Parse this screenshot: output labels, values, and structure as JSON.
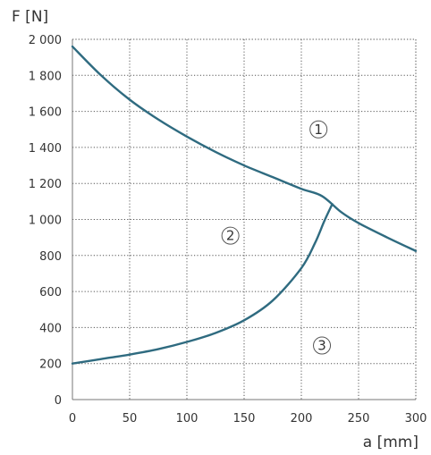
{
  "chart_data": {
    "type": "line",
    "xlabel": "a [mm]",
    "ylabel": "F [N]",
    "xlim": [
      0,
      300
    ],
    "ylim": [
      0,
      2000
    ],
    "grid": true,
    "x_ticks": [
      {
        "value": 0,
        "label": "0"
      },
      {
        "value": 50,
        "label": "50"
      },
      {
        "value": 100,
        "label": "100"
      },
      {
        "value": 150,
        "label": "150"
      },
      {
        "value": 200,
        "label": "200"
      },
      {
        "value": 250,
        "label": "250"
      },
      {
        "value": 300,
        "label": "300"
      }
    ],
    "y_ticks": [
      {
        "value": 0,
        "label": "0"
      },
      {
        "value": 200,
        "label": "200"
      },
      {
        "value": 400,
        "label": "400"
      },
      {
        "value": 600,
        "label": "600"
      },
      {
        "value": 800,
        "label": "800"
      },
      {
        "value": 1000,
        "label": "1 000"
      },
      {
        "value": 1200,
        "label": "1 200"
      },
      {
        "value": 1400,
        "label": "1 400"
      },
      {
        "value": 1600,
        "label": "1 600"
      },
      {
        "value": 1800,
        "label": "1 800"
      },
      {
        "value": 2000,
        "label": "2 000"
      }
    ],
    "series": [
      {
        "color": "#2f6b80",
        "points": [
          [
            0,
            1960
          ],
          [
            25,
            1800
          ],
          [
            50,
            1665
          ],
          [
            75,
            1555
          ],
          [
            100,
            1460
          ],
          [
            125,
            1375
          ],
          [
            150,
            1300
          ],
          [
            175,
            1235
          ],
          [
            200,
            1170
          ],
          [
            218,
            1130
          ],
          [
            235,
            1040
          ],
          [
            250,
            980
          ],
          [
            275,
            900
          ],
          [
            300,
            825
          ]
        ]
      },
      {
        "color": "#2f6b80",
        "points": [
          [
            0,
            200
          ],
          [
            25,
            225
          ],
          [
            50,
            250
          ],
          [
            75,
            280
          ],
          [
            100,
            320
          ],
          [
            125,
            370
          ],
          [
            150,
            440
          ],
          [
            175,
            550
          ],
          [
            200,
            730
          ],
          [
            212,
            870
          ],
          [
            220,
            990
          ],
          [
            227,
            1085
          ]
        ]
      }
    ],
    "annotations": [
      {
        "label": "1",
        "x": 215,
        "y": 1500
      },
      {
        "label": "2",
        "x": 138,
        "y": 910
      },
      {
        "label": "3",
        "x": 218,
        "y": 300
      }
    ]
  }
}
